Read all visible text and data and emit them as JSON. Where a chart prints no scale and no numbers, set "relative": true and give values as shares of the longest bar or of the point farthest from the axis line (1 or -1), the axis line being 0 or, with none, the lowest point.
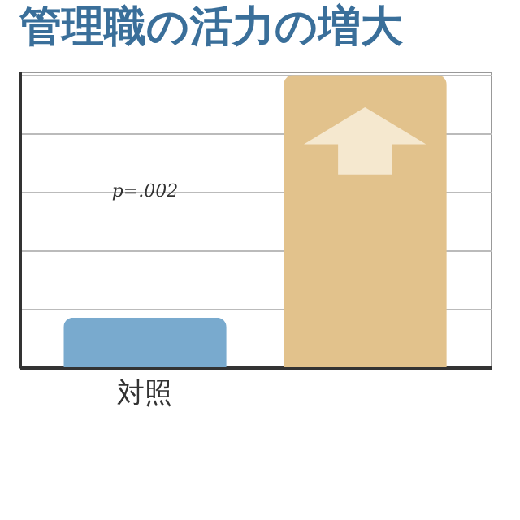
{
  "chart_data": {
    "type": "bar",
    "title": "管理職の活力の増大",
    "categories": [
      "対照",
      null
    ],
    "relative": true,
    "values": [
      0.17,
      1
    ],
    "colors": [
      "#79aace",
      "#e2c28c"
    ],
    "grid": "y",
    "annotations": [
      "p=.002"
    ]
  }
}
